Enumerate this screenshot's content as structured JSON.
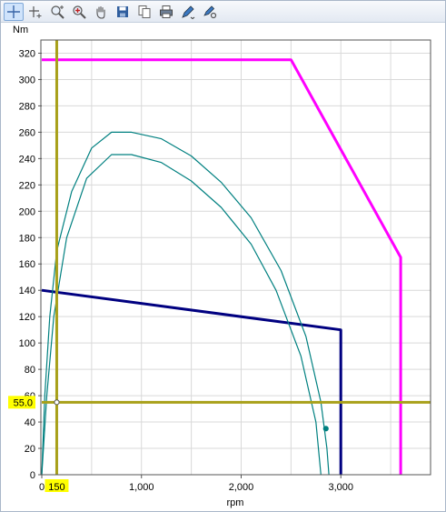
{
  "toolbar": {
    "tools": [
      {
        "name": "crosshair-tool-icon",
        "active": true
      },
      {
        "name": "pan-crosshair-icon",
        "active": false
      },
      {
        "name": "zoom-fit-icon",
        "active": false
      },
      {
        "name": "zoom-icon",
        "active": false
      },
      {
        "name": "hand-icon",
        "active": false
      },
      {
        "name": "save-icon",
        "active": false
      },
      {
        "name": "copy-icon",
        "active": false
      },
      {
        "name": "print-icon",
        "active": false
      },
      {
        "name": "pen-icon",
        "active": false
      },
      {
        "name": "pen-settings-icon",
        "active": false
      }
    ]
  },
  "chart_data": {
    "type": "line",
    "ylabel": "Nm",
    "xlabel": "rpm",
    "xlim": [
      0,
      3900
    ],
    "ylim": [
      0,
      330
    ],
    "xticks": [
      0,
      1000,
      2000,
      3000
    ],
    "xtick_labels": [
      "0",
      "1,000",
      "2,000",
      "3,000"
    ],
    "yticks": [
      0,
      20,
      40,
      60,
      80,
      100,
      120,
      140,
      160,
      180,
      200,
      220,
      240,
      260,
      280,
      300,
      320
    ],
    "grid": true,
    "cursor": {
      "x": 150,
      "y": 55.0,
      "x_label": "150",
      "y_label": "55.0",
      "color": "#a8a01a"
    },
    "colors": {
      "magenta": "#ff00ff",
      "navy": "#000080",
      "teal": "#008080",
      "cursor": "#a8a01a",
      "cursor_label_bg": "#ffff00"
    },
    "series": [
      {
        "color": "#ff00ff",
        "points": [
          [
            0,
            315
          ],
          [
            2500,
            315
          ],
          [
            3600,
            165
          ],
          [
            3600,
            0
          ]
        ]
      },
      {
        "color": "#000080",
        "points": [
          [
            0,
            140
          ],
          [
            3000,
            110
          ],
          [
            3000,
            0
          ]
        ]
      },
      {
        "color": "#008080",
        "points": [
          [
            0,
            0
          ],
          [
            30,
            60
          ],
          [
            80,
            120
          ],
          [
            150,
            170
          ],
          [
            300,
            215
          ],
          [
            500,
            248
          ],
          [
            700,
            260
          ],
          [
            900,
            260
          ],
          [
            1200,
            255
          ],
          [
            1500,
            242
          ],
          [
            1800,
            222
          ],
          [
            2100,
            195
          ],
          [
            2400,
            155
          ],
          [
            2650,
            105
          ],
          [
            2800,
            55
          ],
          [
            2860,
            20
          ],
          [
            2880,
            0
          ]
        ]
      },
      {
        "color": "#008080",
        "points": [
          [
            0,
            0
          ],
          [
            50,
            60
          ],
          [
            120,
            120
          ],
          [
            250,
            180
          ],
          [
            450,
            225
          ],
          [
            700,
            243
          ],
          [
            900,
            243
          ],
          [
            1200,
            237
          ],
          [
            1500,
            223
          ],
          [
            1800,
            203
          ],
          [
            2100,
            175
          ],
          [
            2350,
            140
          ],
          [
            2600,
            90
          ],
          [
            2750,
            40
          ],
          [
            2800,
            0
          ]
        ]
      }
    ],
    "markers": [
      {
        "x": 150,
        "y": 55,
        "style": "hollow",
        "color": "#a8a01a"
      },
      {
        "x": 2850,
        "y": 35,
        "style": "filled",
        "color": "#008080"
      }
    ]
  }
}
